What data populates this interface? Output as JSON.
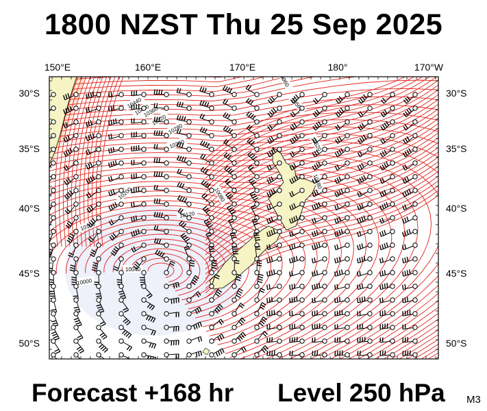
{
  "title": "1800 NZST Thu 25 Sep 2025",
  "footer": {
    "forecast": "Forecast +168 hr",
    "level": "Level 250 hPa",
    "model_code": "M3"
  },
  "axes": {
    "longitudes": [
      "150°E",
      "160°E",
      "170°E",
      "180°",
      "170°W"
    ],
    "latitudes": [
      "30°S",
      "35°S",
      "40°S",
      "45°S",
      "50°S"
    ]
  },
  "contour_labels": [
    "10440",
    "10400",
    "10360",
    "10320",
    "10280",
    "10240",
    "10200",
    "10160",
    "10120",
    "10080",
    "10040",
    "10000",
    "9960",
    "10560",
    "10520",
    "10480"
  ],
  "colors": {
    "contour": "#e0201a",
    "land": "#f6f4c4",
    "low_shading": "#eef0fa",
    "high_shading": "#fbe3ce",
    "station": "#000000"
  }
}
